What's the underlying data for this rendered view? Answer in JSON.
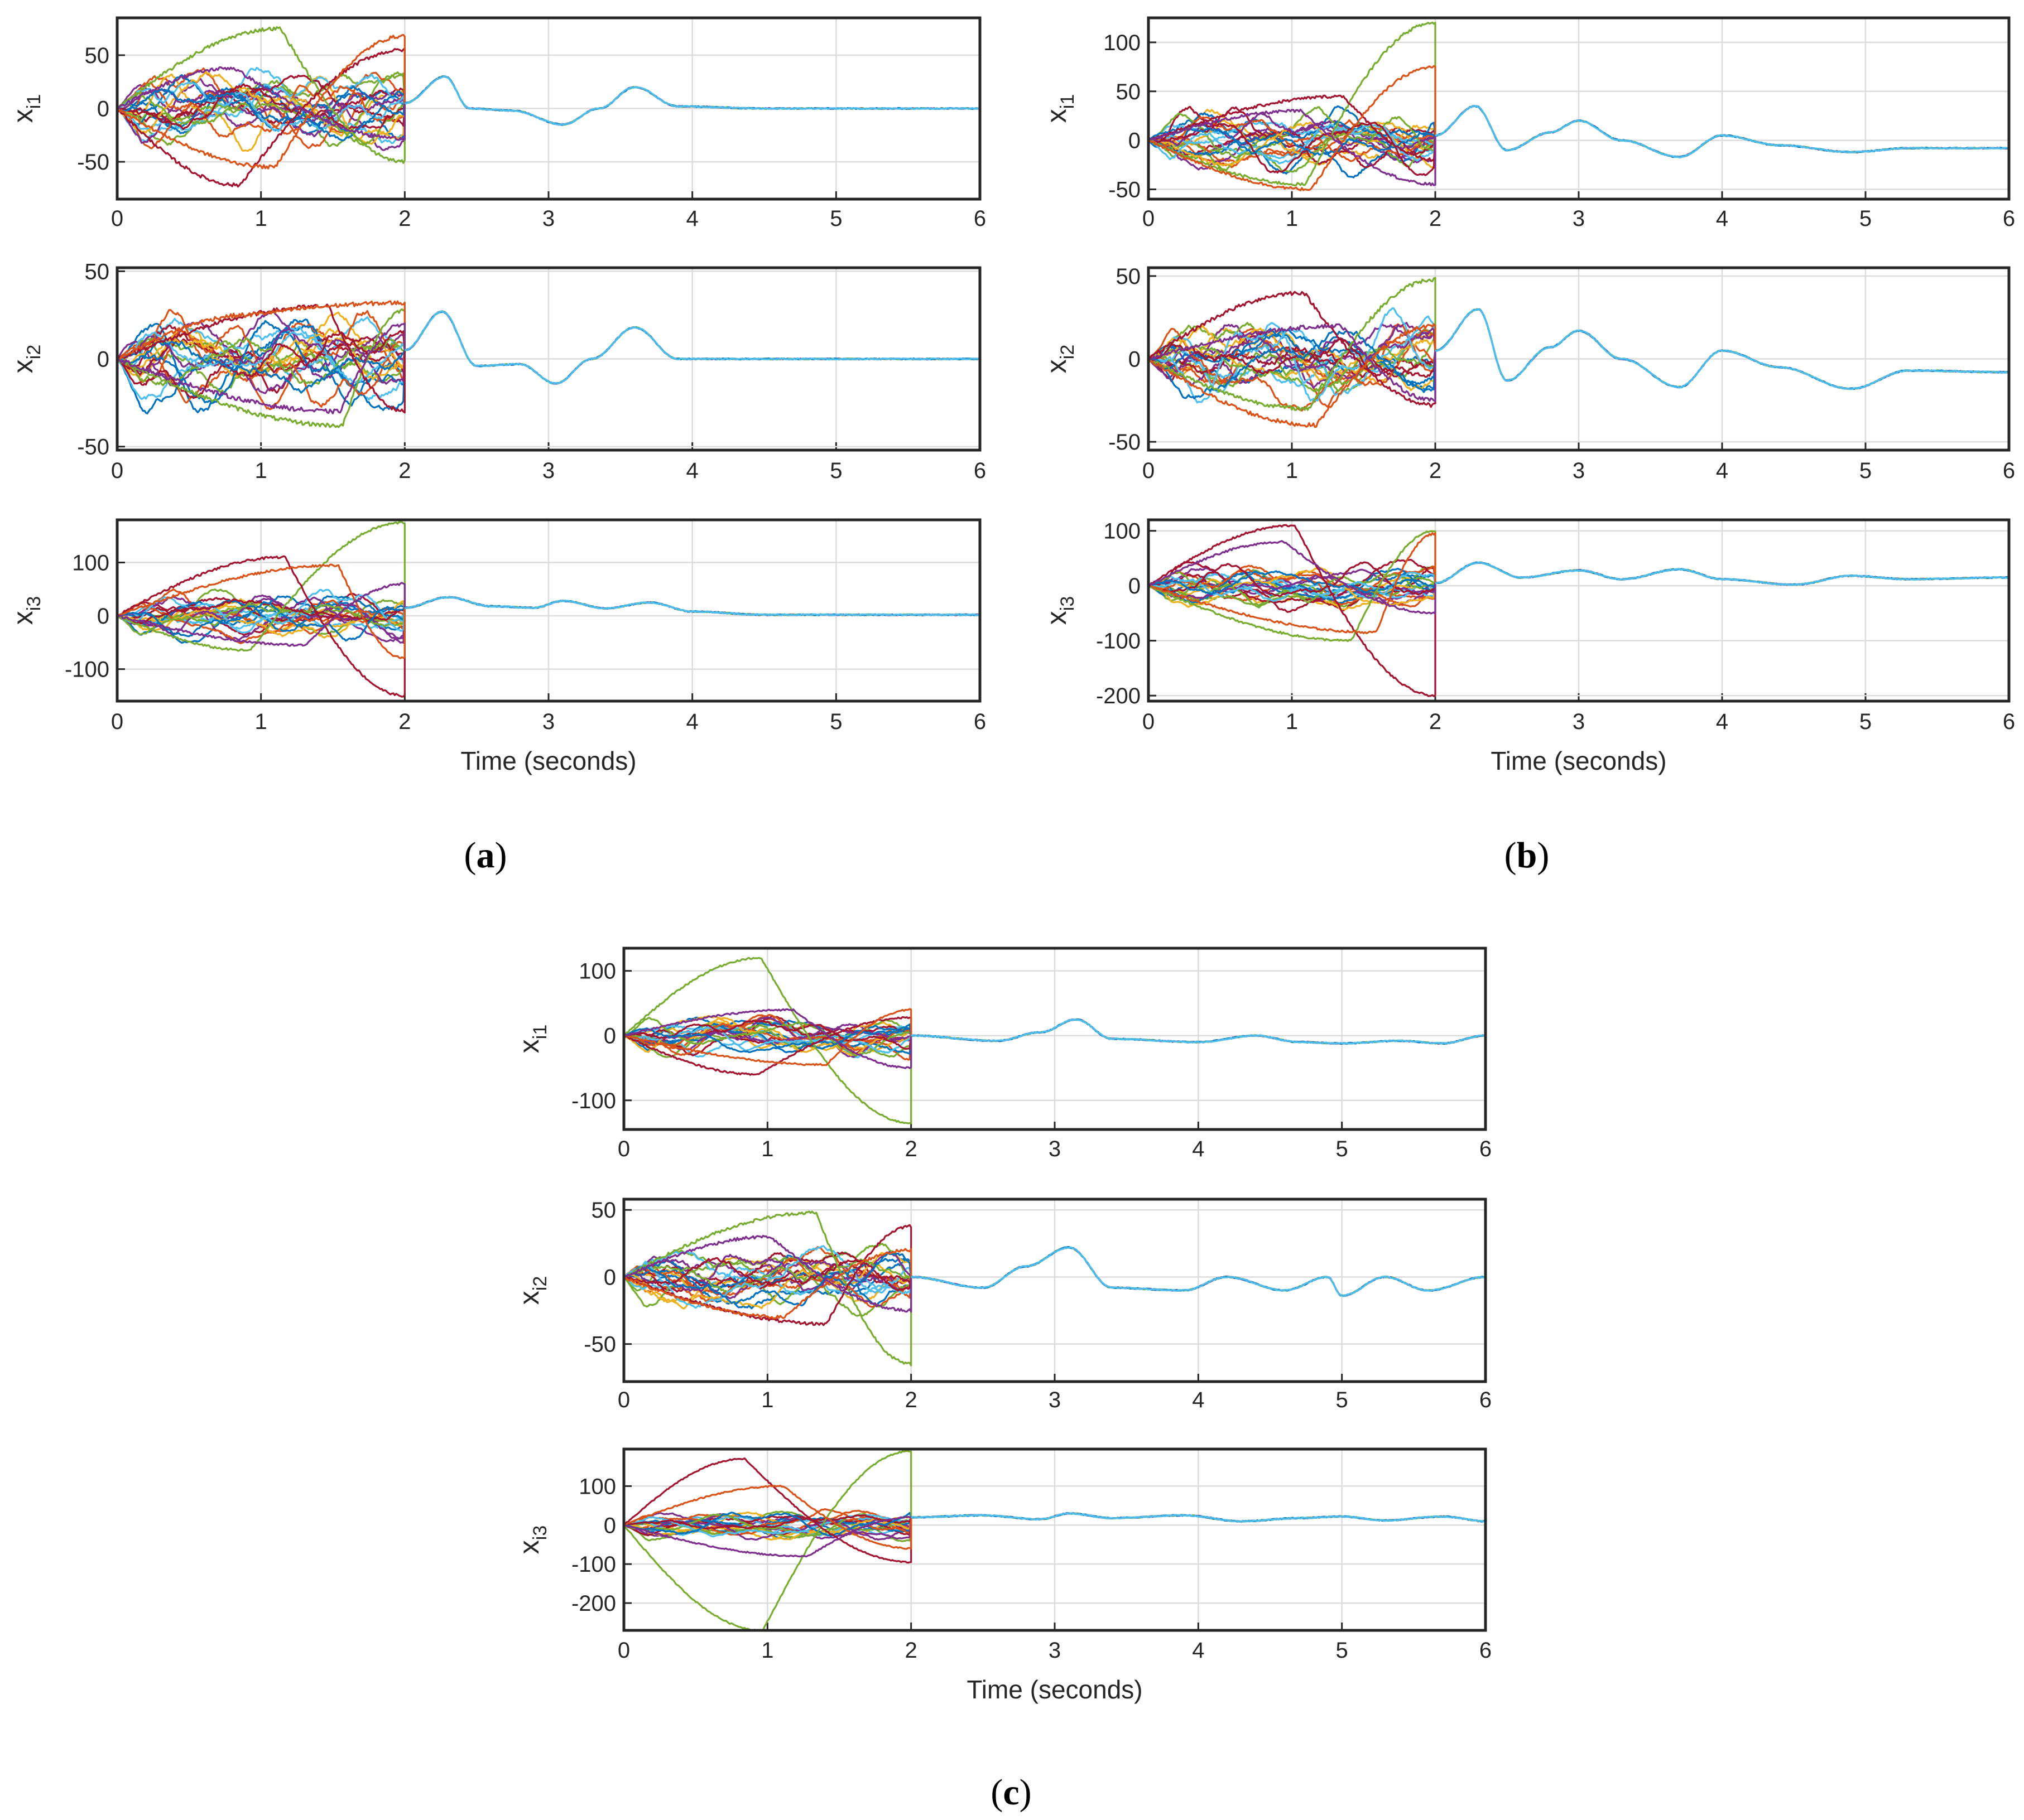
{
  "colors": [
    "#0072BD",
    "#D95319",
    "#EDB120",
    "#7E2F8E",
    "#77AC30",
    "#4DBEEE",
    "#A2142F"
  ],
  "xticks": [
    "0",
    "1",
    "2",
    "3",
    "4",
    "5",
    "6"
  ],
  "panels": [
    {
      "id": "a",
      "caption_letter": "a",
      "xlabel": "Time (seconds)",
      "subplots": [
        {
          "ylabel_main": "x",
          "ylabel_sub": "i1",
          "yticks": [
            "50",
            "0",
            "-50"
          ],
          "ylim": [
            -85,
            85
          ],
          "tick_values": [
            50,
            0,
            -50
          ],
          "spread": 22,
          "outliers": [
            [
              75,
              -50
            ],
            [
              -72,
              55
            ],
            [
              -55,
              68
            ],
            [
              38,
              -28
            ]
          ],
          "consensus": [
            [
              2.0,
              5
            ],
            [
              2.28,
              30
            ],
            [
              2.45,
              0
            ],
            [
              2.75,
              -2
            ],
            [
              3.1,
              -15
            ],
            [
              3.35,
              0
            ],
            [
              3.6,
              20
            ],
            [
              3.9,
              2
            ],
            [
              4.5,
              0
            ],
            [
              6.0,
              0
            ]
          ]
        },
        {
          "ylabel_main": "x",
          "ylabel_sub": "i2",
          "yticks": [
            "50",
            "0",
            "-50"
          ],
          "ylim": [
            -52,
            52
          ],
          "tick_values": [
            50,
            0,
            -50
          ],
          "spread": 16,
          "outliers": [
            [
              -38,
              28
            ],
            [
              30,
              -30
            ],
            [
              25,
              32
            ],
            [
              -30,
              20
            ]
          ],
          "consensus": [
            [
              2.0,
              5
            ],
            [
              2.26,
              27
            ],
            [
              2.5,
              -4
            ],
            [
              2.8,
              -3
            ],
            [
              3.05,
              -14
            ],
            [
              3.3,
              0
            ],
            [
              3.6,
              18
            ],
            [
              3.9,
              0
            ],
            [
              4.5,
              0
            ],
            [
              6.0,
              0
            ]
          ]
        },
        {
          "ylabel_main": "x",
          "ylabel_sub": "i3",
          "yticks": [
            "100",
            "0",
            "-100"
          ],
          "ylim": [
            -160,
            180
          ],
          "tick_values": [
            100,
            0,
            -100
          ],
          "spread": 28,
          "outliers": [
            [
              -65,
              175
            ],
            [
              110,
              -150
            ],
            [
              95,
              -80
            ],
            [
              -55,
              60
            ]
          ],
          "consensus": [
            [
              2.0,
              15
            ],
            [
              2.3,
              35
            ],
            [
              2.6,
              18
            ],
            [
              2.9,
              15
            ],
            [
              3.1,
              28
            ],
            [
              3.4,
              14
            ],
            [
              3.7,
              25
            ],
            [
              4.0,
              8
            ],
            [
              4.5,
              2
            ],
            [
              6.0,
              2
            ]
          ]
        }
      ]
    },
    {
      "id": "b",
      "caption_letter": "b",
      "xlabel": "Time (seconds)",
      "subplots": [
        {
          "ylabel_main": "x",
          "ylabel_sub": "i1",
          "yticks": [
            "100",
            "50",
            "0",
            "-50"
          ],
          "ylim": [
            -60,
            125
          ],
          "tick_values": [
            100,
            50,
            0,
            -50
          ],
          "spread": 20,
          "outliers": [
            [
              -45,
              120
            ],
            [
              45,
              -20
            ],
            [
              -50,
              75
            ],
            [
              30,
              -45
            ]
          ],
          "consensus": [
            [
              2.0,
              5
            ],
            [
              2.28,
              35
            ],
            [
              2.5,
              -10
            ],
            [
              2.8,
              8
            ],
            [
              3.0,
              20
            ],
            [
              3.3,
              0
            ],
            [
              3.7,
              -17
            ],
            [
              4.0,
              5
            ],
            [
              4.4,
              -5
            ],
            [
              4.9,
              -12
            ],
            [
              5.3,
              -8
            ],
            [
              6.0,
              -8
            ]
          ]
        },
        {
          "ylabel_main": "x",
          "ylabel_sub": "i2",
          "yticks": [
            "50",
            "0",
            "-50"
          ],
          "ylim": [
            -55,
            55
          ],
          "tick_values": [
            50,
            0,
            -50
          ],
          "spread": 16,
          "outliers": [
            [
              -30,
              48
            ],
            [
              40,
              -28
            ],
            [
              -40,
              20
            ],
            [
              20,
              -25
            ]
          ],
          "consensus": [
            [
              2.0,
              5
            ],
            [
              2.3,
              30
            ],
            [
              2.5,
              -13
            ],
            [
              2.8,
              7
            ],
            [
              3.0,
              17
            ],
            [
              3.3,
              0
            ],
            [
              3.7,
              -17
            ],
            [
              4.0,
              5
            ],
            [
              4.4,
              -5
            ],
            [
              4.9,
              -18
            ],
            [
              5.3,
              -7
            ],
            [
              6.0,
              -8
            ]
          ]
        },
        {
          "ylabel_main": "x",
          "ylabel_sub": "i3",
          "yticks": [
            "100",
            "0",
            "-100",
            "-200"
          ],
          "ylim": [
            -210,
            120
          ],
          "tick_values": [
            100,
            0,
            -100,
            -200
          ],
          "spread": 25,
          "outliers": [
            [
              -100,
              100
            ],
            [
              110,
              -200
            ],
            [
              -85,
              95
            ],
            [
              80,
              -50
            ]
          ],
          "consensus": [
            [
              2.0,
              5
            ],
            [
              2.3,
              42
            ],
            [
              2.6,
              15
            ],
            [
              3.0,
              28
            ],
            [
              3.3,
              12
            ],
            [
              3.7,
              30
            ],
            [
              4.0,
              12
            ],
            [
              4.5,
              2
            ],
            [
              4.9,
              18
            ],
            [
              5.3,
              12
            ],
            [
              6.0,
              15
            ]
          ]
        }
      ]
    },
    {
      "id": "c",
      "caption_letter": "c",
      "xlabel": "Time (seconds)",
      "subplots": [
        {
          "ylabel_main": "x",
          "ylabel_sub": "i1",
          "yticks": [
            "100",
            "0",
            "-100"
          ],
          "ylim": [
            -145,
            135
          ],
          "tick_values": [
            100,
            0,
            -100
          ],
          "spread": 18,
          "outliers": [
            [
              120,
              -135
            ],
            [
              -60,
              28
            ],
            [
              -45,
              40
            ],
            [
              40,
              -50
            ]
          ],
          "consensus": [
            [
              2.0,
              0
            ],
            [
              2.6,
              -8
            ],
            [
              2.9,
              5
            ],
            [
              3.15,
              25
            ],
            [
              3.4,
              -5
            ],
            [
              4.0,
              -10
            ],
            [
              4.4,
              0
            ],
            [
              4.7,
              -10
            ],
            [
              5.0,
              -12
            ],
            [
              5.4,
              -8
            ],
            [
              5.7,
              -12
            ],
            [
              6.0,
              0
            ]
          ]
        },
        {
          "ylabel_main": "x",
          "ylabel_sub": "i2",
          "yticks": [
            "50",
            "0",
            "-50"
          ],
          "ylim": [
            -78,
            58
          ],
          "tick_values": [
            50,
            0,
            -50
          ],
          "spread": 15,
          "outliers": [
            [
              48,
              -65
            ],
            [
              -35,
              38
            ],
            [
              -30,
              20
            ],
            [
              30,
              -25
            ]
          ],
          "consensus": [
            [
              2.0,
              0
            ],
            [
              2.5,
              -8
            ],
            [
              2.8,
              8
            ],
            [
              3.1,
              22
            ],
            [
              3.4,
              -8
            ],
            [
              3.9,
              -10
            ],
            [
              4.2,
              0
            ],
            [
              4.6,
              -10
            ],
            [
              4.9,
              0
            ],
            [
              5.0,
              -14
            ],
            [
              5.3,
              0
            ],
            [
              5.6,
              -10
            ],
            [
              6.0,
              0
            ]
          ]
        },
        {
          "ylabel_main": "x",
          "ylabel_sub": "i3",
          "yticks": [
            "100",
            "0",
            "-100",
            "-200"
          ],
          "ylim": [
            -270,
            195
          ],
          "tick_values": [
            100,
            0,
            -100,
            -200
          ],
          "spread": 22,
          "outliers": [
            [
              -270,
              190
            ],
            [
              170,
              -95
            ],
            [
              100,
              -60
            ],
            [
              -80,
              20
            ]
          ],
          "consensus": [
            [
              2.0,
              20
            ],
            [
              2.5,
              25
            ],
            [
              2.9,
              15
            ],
            [
              3.1,
              30
            ],
            [
              3.4,
              18
            ],
            [
              3.9,
              25
            ],
            [
              4.3,
              10
            ],
            [
              4.7,
              18
            ],
            [
              5.0,
              22
            ],
            [
              5.3,
              12
            ],
            [
              5.7,
              22
            ],
            [
              6.0,
              10
            ]
          ]
        }
      ]
    }
  ],
  "chart_data": [
    {
      "type": "line",
      "panel": "a",
      "title": "",
      "xlabel": "Time (seconds)",
      "xlim": [
        0,
        6
      ],
      "subplots": [
        {
          "ylabel": "x_i1",
          "ylim": [
            -85,
            85
          ],
          "series_description": "many agent trajectories, noisy in [-75, 75] for t<2, converge to a common trajectory for t>=2",
          "consensus": {
            "t": [
              2.0,
              2.28,
              2.45,
              2.75,
              3.1,
              3.35,
              3.6,
              3.9,
              4.5,
              6.0
            ],
            "x": [
              5,
              30,
              0,
              -2,
              -15,
              0,
              20,
              2,
              0,
              0
            ]
          }
        },
        {
          "ylabel": "x_i2",
          "ylim": [
            -52,
            52
          ],
          "consensus": {
            "t": [
              2.0,
              2.26,
              2.5,
              2.8,
              3.05,
              3.3,
              3.6,
              3.9,
              4.5,
              6.0
            ],
            "x": [
              5,
              27,
              -4,
              -3,
              -14,
              0,
              18,
              0,
              0,
              0
            ]
          }
        },
        {
          "ylabel": "x_i3",
          "ylim": [
            -160,
            180
          ],
          "consensus": {
            "t": [
              2.0,
              2.3,
              2.6,
              2.9,
              3.1,
              3.4,
              3.7,
              4.0,
              4.5,
              6.0
            ],
            "x": [
              15,
              35,
              18,
              15,
              28,
              14,
              25,
              8,
              2,
              2
            ]
          }
        }
      ]
    },
    {
      "type": "line",
      "panel": "b",
      "title": "",
      "xlabel": "Time (seconds)",
      "xlim": [
        0,
        6
      ],
      "subplots": [
        {
          "ylabel": "x_i1",
          "ylim": [
            -60,
            125
          ],
          "consensus": {
            "t": [
              2.0,
              2.28,
              2.5,
              2.8,
              3.0,
              3.3,
              3.7,
              4.0,
              4.4,
              4.9,
              5.3,
              6.0
            ],
            "x": [
              5,
              35,
              -10,
              8,
              20,
              0,
              -17,
              5,
              -5,
              -12,
              -8,
              -8
            ]
          }
        },
        {
          "ylabel": "x_i2",
          "ylim": [
            -55,
            55
          ],
          "consensus": {
            "t": [
              2.0,
              2.3,
              2.5,
              2.8,
              3.0,
              3.3,
              3.7,
              4.0,
              4.4,
              4.9,
              5.3,
              6.0
            ],
            "x": [
              5,
              30,
              -13,
              7,
              17,
              0,
              -17,
              5,
              -5,
              -18,
              -7,
              -8
            ]
          }
        },
        {
          "ylabel": "x_i3",
          "ylim": [
            -210,
            120
          ],
          "consensus": {
            "t": [
              2.0,
              2.3,
              2.6,
              3.0,
              3.3,
              3.7,
              4.0,
              4.5,
              4.9,
              5.3,
              6.0
            ],
            "x": [
              5,
              42,
              15,
              28,
              12,
              30,
              12,
              2,
              18,
              12,
              15
            ]
          }
        }
      ]
    },
    {
      "type": "line",
      "panel": "c",
      "title": "",
      "xlabel": "Time (seconds)",
      "xlim": [
        0,
        6
      ],
      "subplots": [
        {
          "ylabel": "x_i1",
          "ylim": [
            -145,
            135
          ],
          "consensus": {
            "t": [
              2.0,
              2.6,
              2.9,
              3.15,
              3.4,
              4.0,
              4.4,
              4.7,
              5.0,
              5.4,
              5.7,
              6.0
            ],
            "x": [
              0,
              -8,
              5,
              25,
              -5,
              -10,
              0,
              -10,
              -12,
              -8,
              -12,
              0
            ]
          }
        },
        {
          "ylabel": "x_i2",
          "ylim": [
            -78,
            58
          ],
          "consensus": {
            "t": [
              2.0,
              2.5,
              2.8,
              3.1,
              3.4,
              3.9,
              4.2,
              4.6,
              4.9,
              5.0,
              5.3,
              5.6,
              6.0
            ],
            "x": [
              0,
              -8,
              8,
              22,
              -8,
              -10,
              0,
              -10,
              0,
              -14,
              0,
              -10,
              0
            ]
          }
        },
        {
          "ylabel": "x_i3",
          "ylim": [
            -270,
            195
          ],
          "consensus": {
            "t": [
              2.0,
              2.5,
              2.9,
              3.1,
              3.4,
              3.9,
              4.3,
              4.7,
              5.0,
              5.3,
              5.7,
              6.0
            ],
            "x": [
              20,
              25,
              15,
              30,
              18,
              25,
              10,
              18,
              22,
              12,
              22,
              10
            ]
          }
        }
      ]
    }
  ]
}
